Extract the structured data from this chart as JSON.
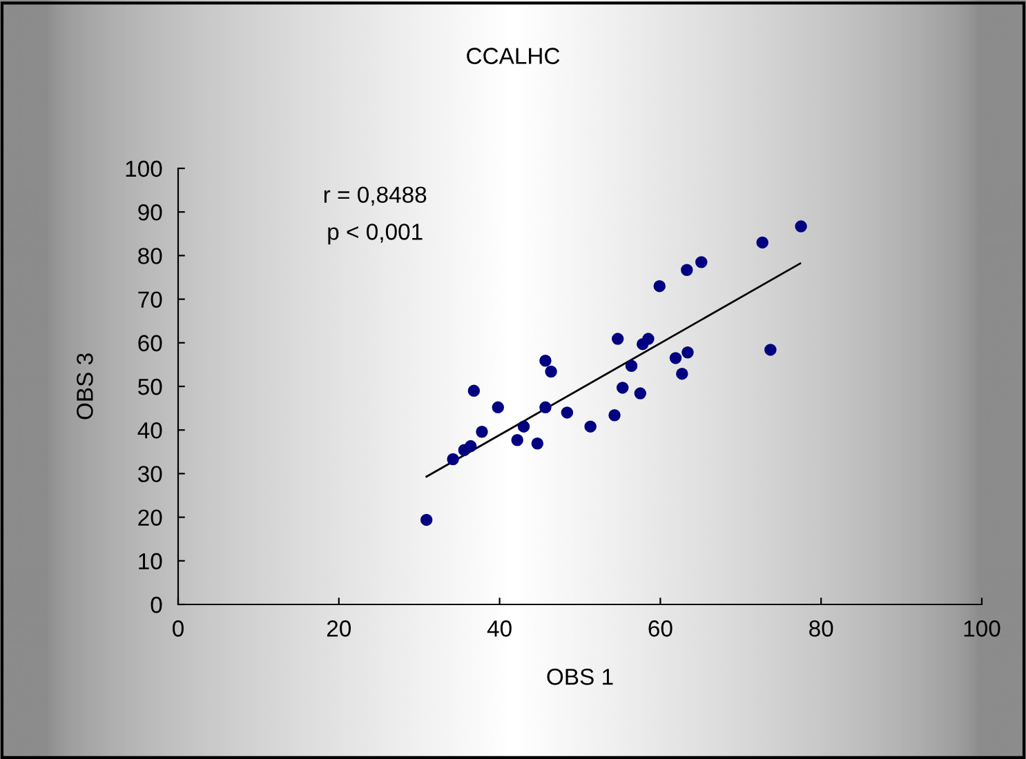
{
  "chart_data": {
    "type": "scatter",
    "title": "CCALHC",
    "xlabel": "OBS 1",
    "ylabel": "OBS 3",
    "annotations": [
      "r = 0,8488",
      "p < 0,001"
    ],
    "xlim": [
      0,
      100
    ],
    "xticks": [
      0,
      20,
      40,
      60,
      80,
      100
    ],
    "ylim": [
      0,
      100
    ],
    "yticks": [
      0,
      10,
      20,
      30,
      40,
      50,
      60,
      70,
      80,
      90,
      100
    ],
    "grid": false,
    "legend": false,
    "marker": "circle",
    "series": [
      {
        "color": "#000080",
        "x": [
          30.9,
          34.2,
          35.6,
          36.4,
          36.8,
          37.8,
          39.8,
          42.2,
          43.0,
          44.7,
          45.7,
          46.4,
          45.7,
          48.4,
          51.3,
          54.3,
          54.7,
          55.3,
          56.4,
          57.5,
          57.8,
          58.5,
          59.9,
          61.9,
          63.4,
          62.7,
          63.3,
          65.1,
          72.7,
          73.7,
          77.5
        ],
        "values": [
          19.4,
          33.3,
          35.4,
          36.3,
          49.0,
          39.6,
          45.2,
          37.7,
          40.8,
          36.9,
          55.9,
          53.4,
          45.2,
          44.0,
          40.8,
          43.4,
          60.9,
          49.7,
          54.7,
          48.4,
          59.7,
          60.9,
          73.0,
          56.5,
          57.8,
          52.9,
          76.7,
          78.5,
          83.0,
          58.4,
          86.7
        ]
      },
      {
        "type": "line",
        "color": "#000000",
        "x": [
          30.9,
          77.4
        ],
        "values": [
          29.3,
          78.2
        ],
        "marker": "none"
      }
    ]
  }
}
